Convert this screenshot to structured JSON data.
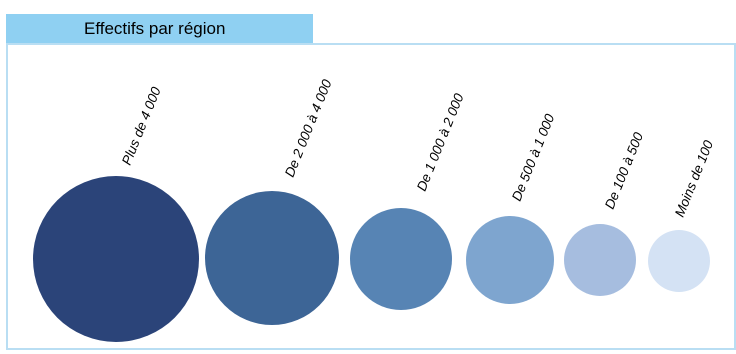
{
  "title": "Effectifs par région",
  "legend": [
    {
      "label": "Plus de 4 000",
      "color": "#2b4479"
    },
    {
      "label": "De 2 000 à 4 000",
      "color": "#3d6596"
    },
    {
      "label": "De 1 000 à 2 000",
      "color": "#5784b4"
    },
    {
      "label": "De 500 à 1 000",
      "color": "#7ea5cf"
    },
    {
      "label": "De 100 à 500",
      "color": "#a6bddf"
    },
    {
      "label": "Moins de 100",
      "color": "#d4e2f4"
    }
  ]
}
